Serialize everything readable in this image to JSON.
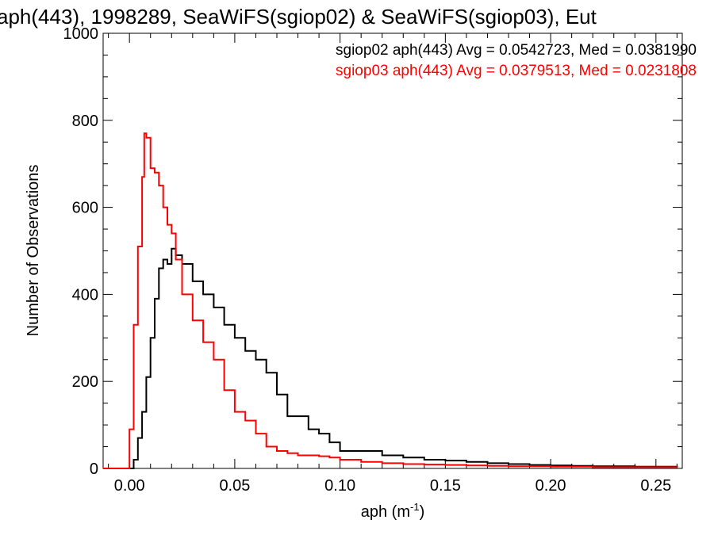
{
  "chart_data": {
    "type": "line",
    "title": "aph(443), 1998289, SeaWiFS(sgiop02) & SeaWiFS(sgiop03), Eut",
    "xlabel_main": "aph (m",
    "xlabel_sup": "-1",
    "xlabel_close": ")",
    "ylabel": "Number of Observations",
    "xlim": [
      -0.0125,
      0.2625
    ],
    "ylim": [
      0,
      1000
    ],
    "x_ticks": [
      {
        "value": 0.0,
        "label": "0.00"
      },
      {
        "value": 0.05,
        "label": "0.05"
      },
      {
        "value": 0.1,
        "label": "0.10"
      },
      {
        "value": 0.15,
        "label": "0.15"
      },
      {
        "value": 0.2,
        "label": "0.20"
      },
      {
        "value": 0.25,
        "label": "0.25"
      }
    ],
    "y_ticks": [
      {
        "value": 0,
        "label": "0"
      },
      {
        "value": 200,
        "label": "200"
      },
      {
        "value": 400,
        "label": "400"
      },
      {
        "value": 600,
        "label": "600"
      },
      {
        "value": 800,
        "label": "800"
      },
      {
        "value": 1000,
        "label": "1000"
      }
    ],
    "series": [
      {
        "name": "sgiop02",
        "color": "#000000",
        "legend": "sgiop02 aph(443) Avg = 0.0542723, Med = 0.0381990",
        "x": [
          -0.0125,
          0.0,
          0.002,
          0.004,
          0.006,
          0.008,
          0.01,
          0.012,
          0.014,
          0.016,
          0.018,
          0.02,
          0.022,
          0.025,
          0.03,
          0.035,
          0.04,
          0.045,
          0.05,
          0.055,
          0.06,
          0.065,
          0.07,
          0.075,
          0.08,
          0.085,
          0.09,
          0.095,
          0.1,
          0.11,
          0.12,
          0.13,
          0.14,
          0.15,
          0.16,
          0.17,
          0.18,
          0.19,
          0.2,
          0.21,
          0.22,
          0.23,
          0.24,
          0.25,
          0.26
        ],
        "y": [
          0,
          0,
          20,
          70,
          130,
          210,
          300,
          390,
          460,
          480,
          470,
          505,
          490,
          470,
          430,
          400,
          370,
          330,
          300,
          270,
          250,
          220,
          170,
          120,
          120,
          90,
          80,
          60,
          40,
          40,
          30,
          25,
          20,
          18,
          15,
          12,
          10,
          8,
          7,
          6,
          5,
          5,
          4,
          4,
          3
        ]
      },
      {
        "name": "sgiop03",
        "color": "#ff0000",
        "legend": "sgiop03 aph(443) Avg = 0.0379513, Med = 0.0231808",
        "x": [
          -0.0125,
          -0.001,
          0.0,
          0.002,
          0.004,
          0.006,
          0.007,
          0.008,
          0.01,
          0.012,
          0.014,
          0.016,
          0.018,
          0.02,
          0.022,
          0.025,
          0.03,
          0.035,
          0.04,
          0.045,
          0.05,
          0.055,
          0.06,
          0.065,
          0.07,
          0.075,
          0.08,
          0.085,
          0.09,
          0.095,
          0.1,
          0.11,
          0.12,
          0.13,
          0.14,
          0.15,
          0.16,
          0.17,
          0.18,
          0.19,
          0.2,
          0.21,
          0.22,
          0.23,
          0.24,
          0.25,
          0.26
        ],
        "y": [
          0,
          0,
          90,
          330,
          510,
          670,
          770,
          760,
          690,
          680,
          650,
          600,
          560,
          540,
          480,
          400,
          340,
          290,
          250,
          180,
          130,
          110,
          80,
          50,
          40,
          35,
          30,
          30,
          28,
          25,
          20,
          15,
          12,
          10,
          9,
          8,
          7,
          6,
          5,
          5,
          4,
          4,
          3,
          3,
          3,
          3,
          2
        ]
      }
    ]
  }
}
